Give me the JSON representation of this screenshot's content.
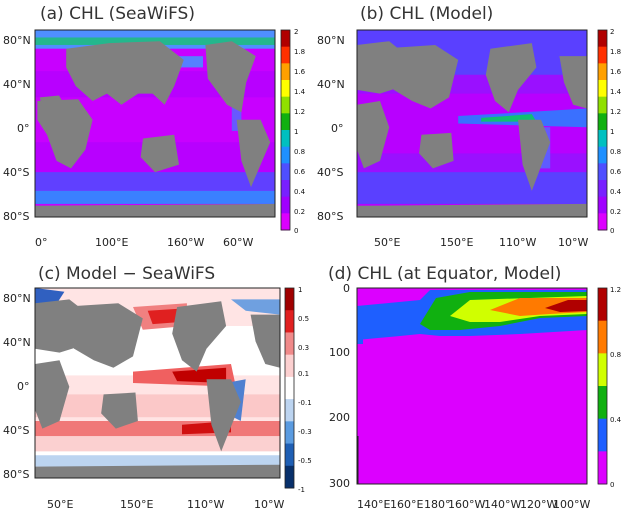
{
  "panels": {
    "a": {
      "title": "(a) CHL (SeaWiFS)",
      "y_ticks": [
        "80°N",
        "40°N",
        "0°",
        "40°S",
        "80°S"
      ],
      "x_ticks": [
        "0°",
        "100°E",
        "160°W",
        "60°W"
      ],
      "colorbar_labels": [
        "2",
        "1.8",
        "1.6",
        "1.4",
        "1.2",
        "1",
        "0.8",
        "0.6",
        "0.4",
        "0.2",
        "0"
      ]
    },
    "b": {
      "title": "(b) CHL (Model)",
      "y_ticks": [
        "80°N",
        "40°N",
        "0°",
        "40°S",
        "80°S"
      ],
      "x_ticks": [
        "50°E",
        "150°E",
        "110°W",
        "10°W"
      ],
      "colorbar_labels": [
        "2",
        "1.8",
        "1.6",
        "1.4",
        "1.2",
        "1",
        "0.8",
        "0.6",
        "0.4",
        "0.2",
        "0"
      ]
    },
    "c": {
      "title": "(c) Model − SeaWiFS",
      "y_ticks": [
        "80°N",
        "40°N",
        "0°",
        "40°S",
        "80°S"
      ],
      "x_ticks": [
        "50°E",
        "150°E",
        "110°W",
        "10°W"
      ],
      "colorbar_labels": [
        "1",
        "0.5",
        "0.3",
        "0.1",
        "-0.1",
        "-0.3",
        "-0.5",
        "-1"
      ]
    },
    "d": {
      "title": "(d) CHL (at Equator, Model)",
      "y_ticks": [
        "0",
        "100",
        "200",
        "300"
      ],
      "x_ticks": [
        "140°E",
        "160°E",
        "180°",
        "160°W",
        "140°W",
        "120°W",
        "100°W"
      ],
      "colorbar_labels": [
        "1.2",
        "0.8",
        "0.4",
        "0"
      ]
    }
  },
  "colors": {
    "land": "#808080",
    "chl_scale": [
      "#dc00ff",
      "#a000ff",
      "#7820ff",
      "#4f4fff",
      "#1e90ff",
      "#00c0c0",
      "#10b010",
      "#90e000",
      "#ffff00",
      "#ffa000",
      "#ff3000",
      "#b00000"
    ],
    "diff_scale": [
      "#08306b",
      "#1f5fb4",
      "#5a9be0",
      "#bcd4f0",
      "#ffffff",
      "#fcd0d0",
      "#f08a8a",
      "#e02020",
      "#a00000"
    ],
    "section_scale": [
      "#dc00ff",
      "#1e5fff",
      "#10b010",
      "#d0ff00",
      "#ff7a00",
      "#b00000"
    ]
  }
}
